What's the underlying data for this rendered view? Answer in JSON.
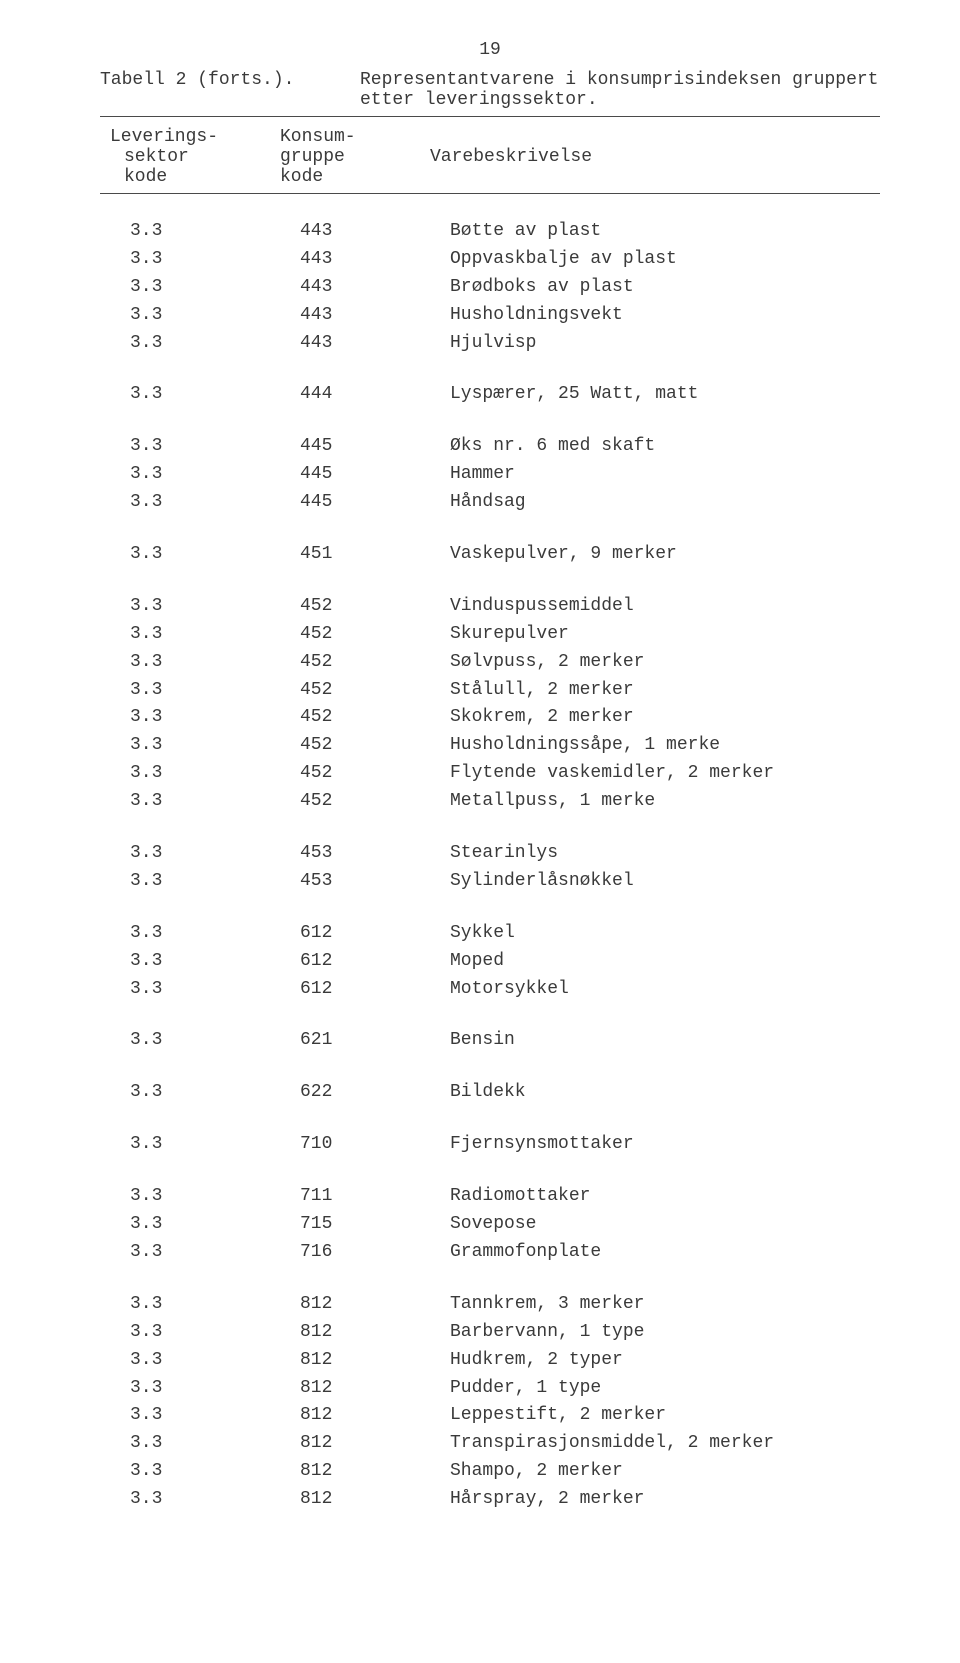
{
  "page_number": "19",
  "title_left": "Tabell 2 (forts.).",
  "title_right_line1": "Representantvarene i konsumprisindeksen gruppert",
  "title_right_line2": "etter leveringssektor.",
  "header": {
    "sektor_l1": "Leverings-",
    "sektor_l2": "sektor",
    "sektor_l3": "kode",
    "gruppe_l1": "Konsum-",
    "gruppe_l2": "gruppe",
    "gruppe_l3": "kode",
    "desc_l2": "Varebeskrivelse"
  },
  "groups": [
    {
      "rows": [
        {
          "s": "3.3",
          "g": "443",
          "d": "Bøtte av plast"
        },
        {
          "s": "3.3",
          "g": "443",
          "d": "Oppvaskbalje av plast"
        },
        {
          "s": "3.3",
          "g": "443",
          "d": "Brødboks av plast"
        },
        {
          "s": "3.3",
          "g": "443",
          "d": "Husholdningsvekt"
        },
        {
          "s": "3.3",
          "g": "443",
          "d": "Hjulvisp"
        }
      ]
    },
    {
      "rows": [
        {
          "s": "3.3",
          "g": "444",
          "d": "Lyspærer, 25 Watt, matt"
        }
      ]
    },
    {
      "rows": [
        {
          "s": "3.3",
          "g": "445",
          "d": "Øks nr. 6 med skaft"
        },
        {
          "s": "3.3",
          "g": "445",
          "d": "Hammer"
        },
        {
          "s": "3.3",
          "g": "445",
          "d": "Håndsag"
        }
      ]
    },
    {
      "rows": [
        {
          "s": "3.3",
          "g": "451",
          "d": "Vaskepulver, 9 merker"
        }
      ]
    },
    {
      "rows": [
        {
          "s": "3.3",
          "g": "452",
          "d": "Vinduspussemiddel"
        },
        {
          "s": "3.3",
          "g": "452",
          "d": "Skurepulver"
        },
        {
          "s": "3.3",
          "g": "452",
          "d": "Sølvpuss, 2 merker"
        },
        {
          "s": "3.3",
          "g": "452",
          "d": "Stålull, 2 merker"
        },
        {
          "s": "3.3",
          "g": "452",
          "d": "Skokrem, 2 merker"
        },
        {
          "s": "3.3",
          "g": "452",
          "d": "Husholdningssåpe, 1 merke"
        },
        {
          "s": "3.3",
          "g": "452",
          "d": "Flytende vaskemidler, 2 merker"
        },
        {
          "s": "3.3",
          "g": "452",
          "d": "Metallpuss, 1 merke"
        }
      ]
    },
    {
      "rows": [
        {
          "s": "3.3",
          "g": "453",
          "d": "Stearinlys"
        },
        {
          "s": "3.3",
          "g": "453",
          "d": "Sylinderlåsnøkkel"
        }
      ]
    },
    {
      "rows": [
        {
          "s": "3.3",
          "g": "612",
          "d": "Sykkel"
        },
        {
          "s": "3.3",
          "g": "612",
          "d": "Moped"
        },
        {
          "s": "3.3",
          "g": "612",
          "d": "Motorsykkel"
        }
      ]
    },
    {
      "rows": [
        {
          "s": "3.3",
          "g": "621",
          "d": "Bensin"
        }
      ]
    },
    {
      "rows": [
        {
          "s": "3.3",
          "g": "622",
          "d": "Bildekk"
        }
      ]
    },
    {
      "rows": [
        {
          "s": "3.3",
          "g": "710",
          "d": "Fjernsynsmottaker"
        }
      ]
    },
    {
      "rows": [
        {
          "s": "3.3",
          "g": "711",
          "d": "Radiomottaker"
        },
        {
          "s": "3.3",
          "g": "715",
          "d": "Sovepose"
        },
        {
          "s": "3.3",
          "g": "716",
          "d": "Grammofonplate"
        }
      ]
    },
    {
      "rows": [
        {
          "s": "3.3",
          "g": "812",
          "d": "Tannkrem, 3 merker"
        },
        {
          "s": "3.3",
          "g": "812",
          "d": "Barbervann, 1 type"
        },
        {
          "s": "3.3",
          "g": "812",
          "d": "Hudkrem, 2 typer"
        },
        {
          "s": "3.3",
          "g": "812",
          "d": "Pudder, 1 type"
        },
        {
          "s": "3.3",
          "g": "812",
          "d": "Leppestift, 2 merker"
        },
        {
          "s": "3.3",
          "g": "812",
          "d": "Transpirasjonsmiddel, 2 merker"
        },
        {
          "s": "3.3",
          "g": "812",
          "d": "Shampo, 2 merker"
        },
        {
          "s": "3.3",
          "g": "812",
          "d": "Hårspray, 2 merker"
        }
      ]
    }
  ]
}
